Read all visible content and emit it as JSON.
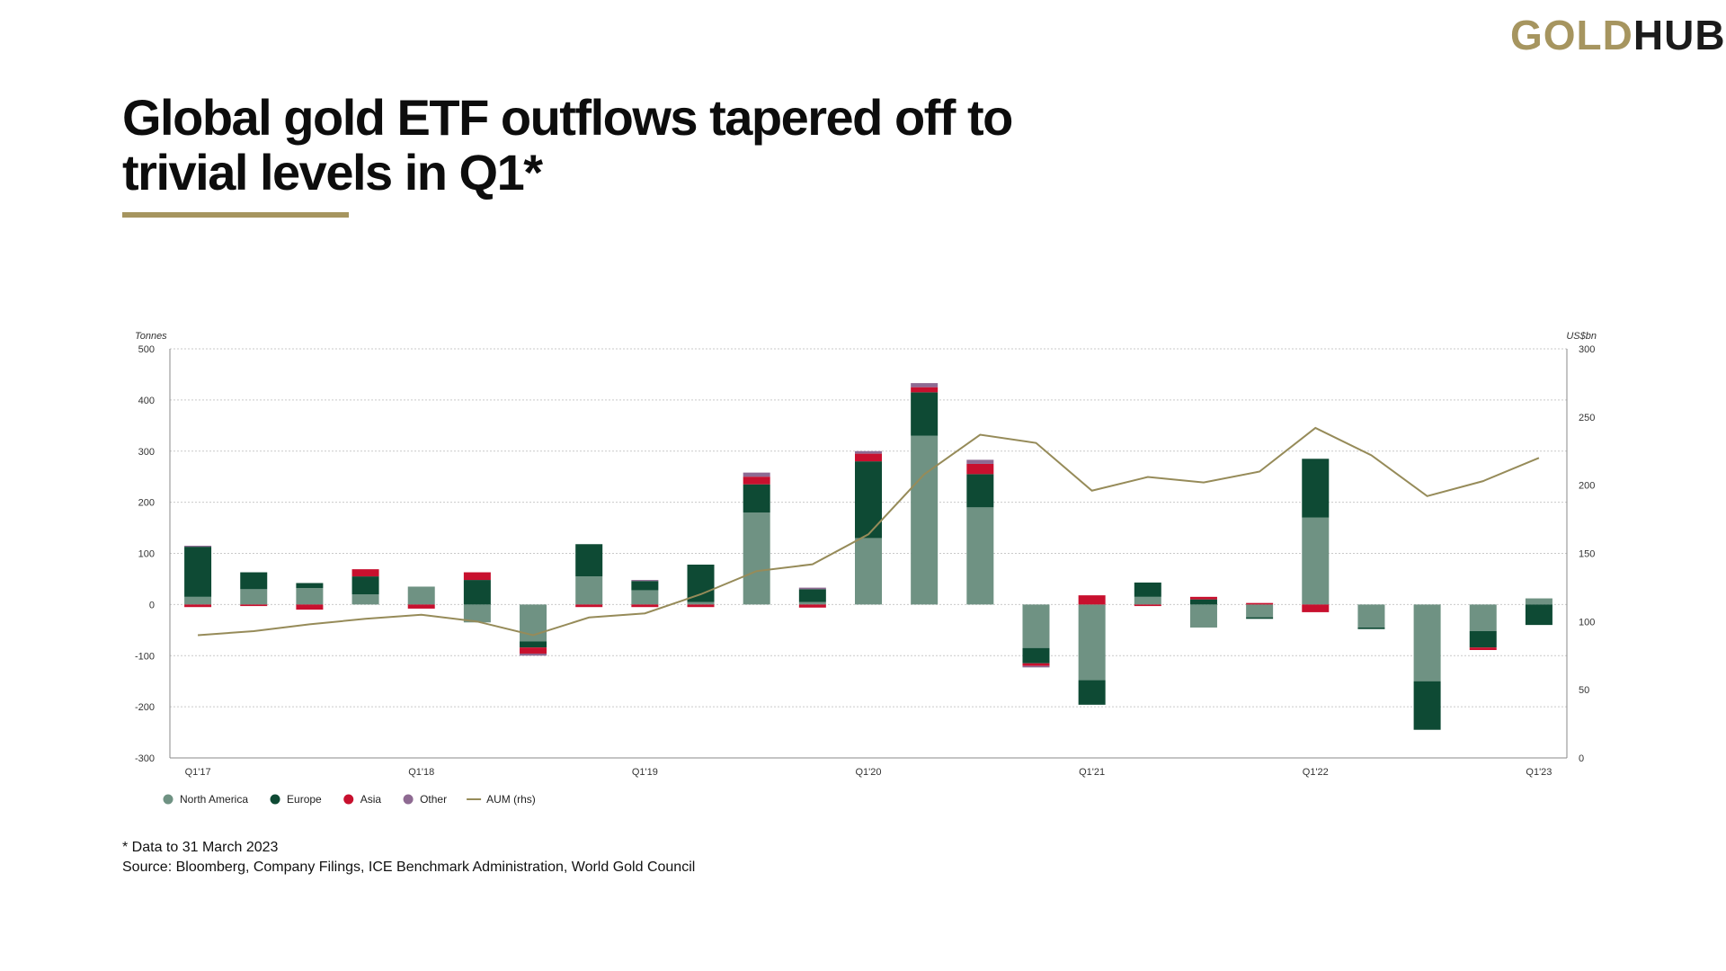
{
  "brand": {
    "logo_part1": "GOLD",
    "logo_part2": "HUB",
    "gold_color": "#a6955f",
    "dark_color": "#1b1b1b"
  },
  "title_line1": "Global gold ETF outflows tapered off to",
  "title_line2": "trivial levels in Q1*",
  "footnote": "* Data to 31 March 2023",
  "source": "Source: Bloomberg, Company Filings, ICE Benchmark Administration, World Gold Council",
  "chart_data": {
    "type": "bar",
    "stacked": true,
    "ylabel": "Tonnes",
    "y2label": "US$bn",
    "ylim": [
      -300,
      500
    ],
    "y2lim": [
      0,
      300
    ],
    "yticks": [
      -300,
      -200,
      -100,
      0,
      100,
      200,
      300,
      400,
      500
    ],
    "y2ticks": [
      0,
      50,
      100,
      150,
      200,
      250,
      300
    ],
    "grid": true,
    "legend_position": "bottom-left",
    "categories": [
      "Q1'17",
      "Q2'17",
      "Q3'17",
      "Q4'17",
      "Q1'18",
      "Q2'18",
      "Q3'18",
      "Q4'18",
      "Q1'19",
      "Q2'19",
      "Q3'19",
      "Q4'19",
      "Q1'20",
      "Q2'20",
      "Q3'20",
      "Q4'20",
      "Q1'21",
      "Q2'21",
      "Q3'21",
      "Q4'21",
      "Q1'22",
      "Q2'22",
      "Q3'22",
      "Q4'22",
      "Q1'23"
    ],
    "x_tick_labels": [
      "Q1'17",
      "",
      "",
      "",
      "Q1'18",
      "",
      "",
      "",
      "Q1'19",
      "",
      "",
      "",
      "Q1'20",
      "",
      "",
      "",
      "Q1'21",
      "",
      "",
      "",
      "Q1'22",
      "",
      "",
      "",
      "Q1'23"
    ],
    "series": [
      {
        "name": "North America",
        "color": "#6f9283",
        "values": [
          15,
          30,
          32,
          20,
          35,
          -35,
          -72,
          55,
          28,
          5,
          180,
          5,
          130,
          330,
          190,
          -85,
          -148,
          15,
          -45,
          -25,
          170,
          -45,
          -150,
          -52,
          12
        ]
      },
      {
        "name": "Europe",
        "color": "#0e4a34",
        "values": [
          98,
          33,
          10,
          35,
          0,
          48,
          -12,
          63,
          18,
          73,
          55,
          25,
          150,
          85,
          65,
          -30,
          -48,
          28,
          10,
          -3,
          115,
          -3,
          -95,
          -32,
          -40
        ]
      },
      {
        "name": "Asia",
        "color": "#c8102e",
        "values": [
          -5,
          -3,
          -10,
          14,
          -8,
          15,
          -12,
          -5,
          -5,
          -5,
          15,
          -6,
          15,
          10,
          20,
          -5,
          18,
          -3,
          5,
          3,
          -15,
          0,
          0,
          -5,
          0
        ]
      },
      {
        "name": "Other",
        "color": "#8e6a92",
        "values": [
          2,
          0,
          0,
          0,
          0,
          0,
          -4,
          0,
          2,
          0,
          8,
          3,
          5,
          8,
          8,
          -3,
          0,
          0,
          0,
          0,
          0,
          0,
          0,
          0,
          0
        ]
      }
    ],
    "line_series": {
      "name": "AUM (rhs)",
      "color": "#968b59",
      "axis": "rhs",
      "values": [
        90,
        93,
        98,
        102,
        105,
        100,
        90,
        103,
        106,
        120,
        137,
        142,
        164,
        208,
        237,
        231,
        196,
        206,
        202,
        210,
        242,
        222,
        192,
        203,
        220
      ]
    }
  }
}
